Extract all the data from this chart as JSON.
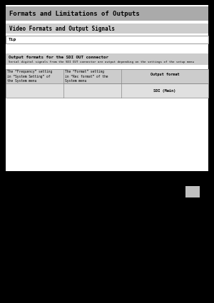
{
  "page_bg": "#000000",
  "content_bg": "#ffffff",
  "title_text": "Formats and Limitations of Outputs",
  "title_bg": "#aaaaaa",
  "title_fg": "#000000",
  "subtitle_text": "Video Formats and Output Signals",
  "subtitle_bg": "#cccccc",
  "subtitle_fg": "#000000",
  "tip_label": "Tip",
  "tip_bg": "#ffffff",
  "tip_border": "#888888",
  "section_text": "Output formats for the SDI OUT connector",
  "section_sub": "Serial digital signals from the SDI OUT connector are output depending on the settings of the setup menu",
  "section_bg": "#cccccc",
  "section_fg": "#000000",
  "table_header_bg": "#cccccc",
  "table_row_bg": "#e0e0e0",
  "table_body_bg": "#eeeeee",
  "table_border": "#888888",
  "col1_header": "The “Frequency” setting\nin “System Setting” of\nthe System menu",
  "col2_header": "The “Format” setting\nin “Rec format” of the\nSystem menu",
  "col3_header": "Output format",
  "col3_sub": "SDI (Main)",
  "small_rect_color": "#c0c0c0"
}
